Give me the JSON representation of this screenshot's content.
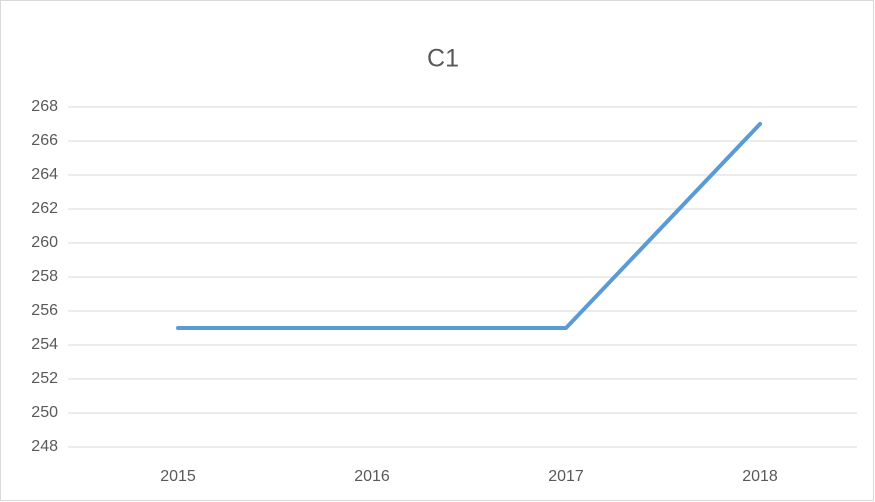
{
  "chart_data": {
    "type": "line",
    "title": "C1",
    "categories": [
      "2015",
      "2016",
      "2017",
      "2018"
    ],
    "series": [
      {
        "name": "C1",
        "color": "#5b9bd5",
        "values": [
          255,
          255,
          255,
          267
        ]
      }
    ],
    "ylim": [
      248,
      268
    ],
    "yticks": [
      248,
      250,
      252,
      254,
      256,
      258,
      260,
      262,
      264,
      266,
      268
    ],
    "grid": true
  }
}
